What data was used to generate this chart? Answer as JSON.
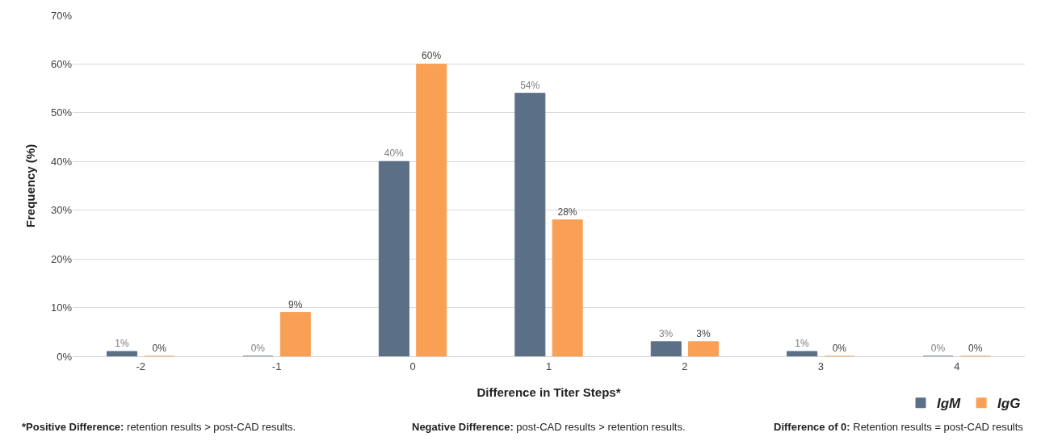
{
  "chart_data": {
    "type": "bar",
    "xlabel": "Difference in Titer Steps*",
    "ylabel": "Frequency (%)",
    "categories": [
      "-2",
      "-1",
      "0",
      "1",
      "2",
      "3",
      "4"
    ],
    "series": [
      {
        "name": "IgM",
        "color": "#5b6f86",
        "values": [
          1,
          0,
          40,
          54,
          3,
          1,
          0
        ],
        "value_labels": [
          "1%",
          "0%",
          "40%",
          "54%",
          "3%",
          "1%",
          "0%"
        ]
      },
      {
        "name": "IgG",
        "color": "#f9a055",
        "values": [
          0,
          9,
          60,
          28,
          3,
          0,
          0
        ],
        "value_labels": [
          "0%",
          "9%",
          "60%",
          "28%",
          "3%",
          "0%",
          "0%"
        ]
      }
    ],
    "ylim": [
      0,
      70
    ],
    "yticks": [
      {
        "value": 0,
        "label": "0%"
      },
      {
        "value": 10,
        "label": "10%"
      },
      {
        "value": 20,
        "label": "20%"
      },
      {
        "value": 30,
        "label": "30%"
      },
      {
        "value": 40,
        "label": "40%"
      },
      {
        "value": 50,
        "label": "50%"
      },
      {
        "value": 60,
        "label": "60%"
      },
      {
        "value": 70,
        "label": "70%"
      }
    ],
    "grid": "y",
    "legend": "bottom right",
    "annotations": [
      "*Positive Difference: retention results > post-CAD results.",
      "Negative Difference: post-CAD results > retention results.",
      "Difference of 0: Retention results = post-CAD results"
    ]
  }
}
